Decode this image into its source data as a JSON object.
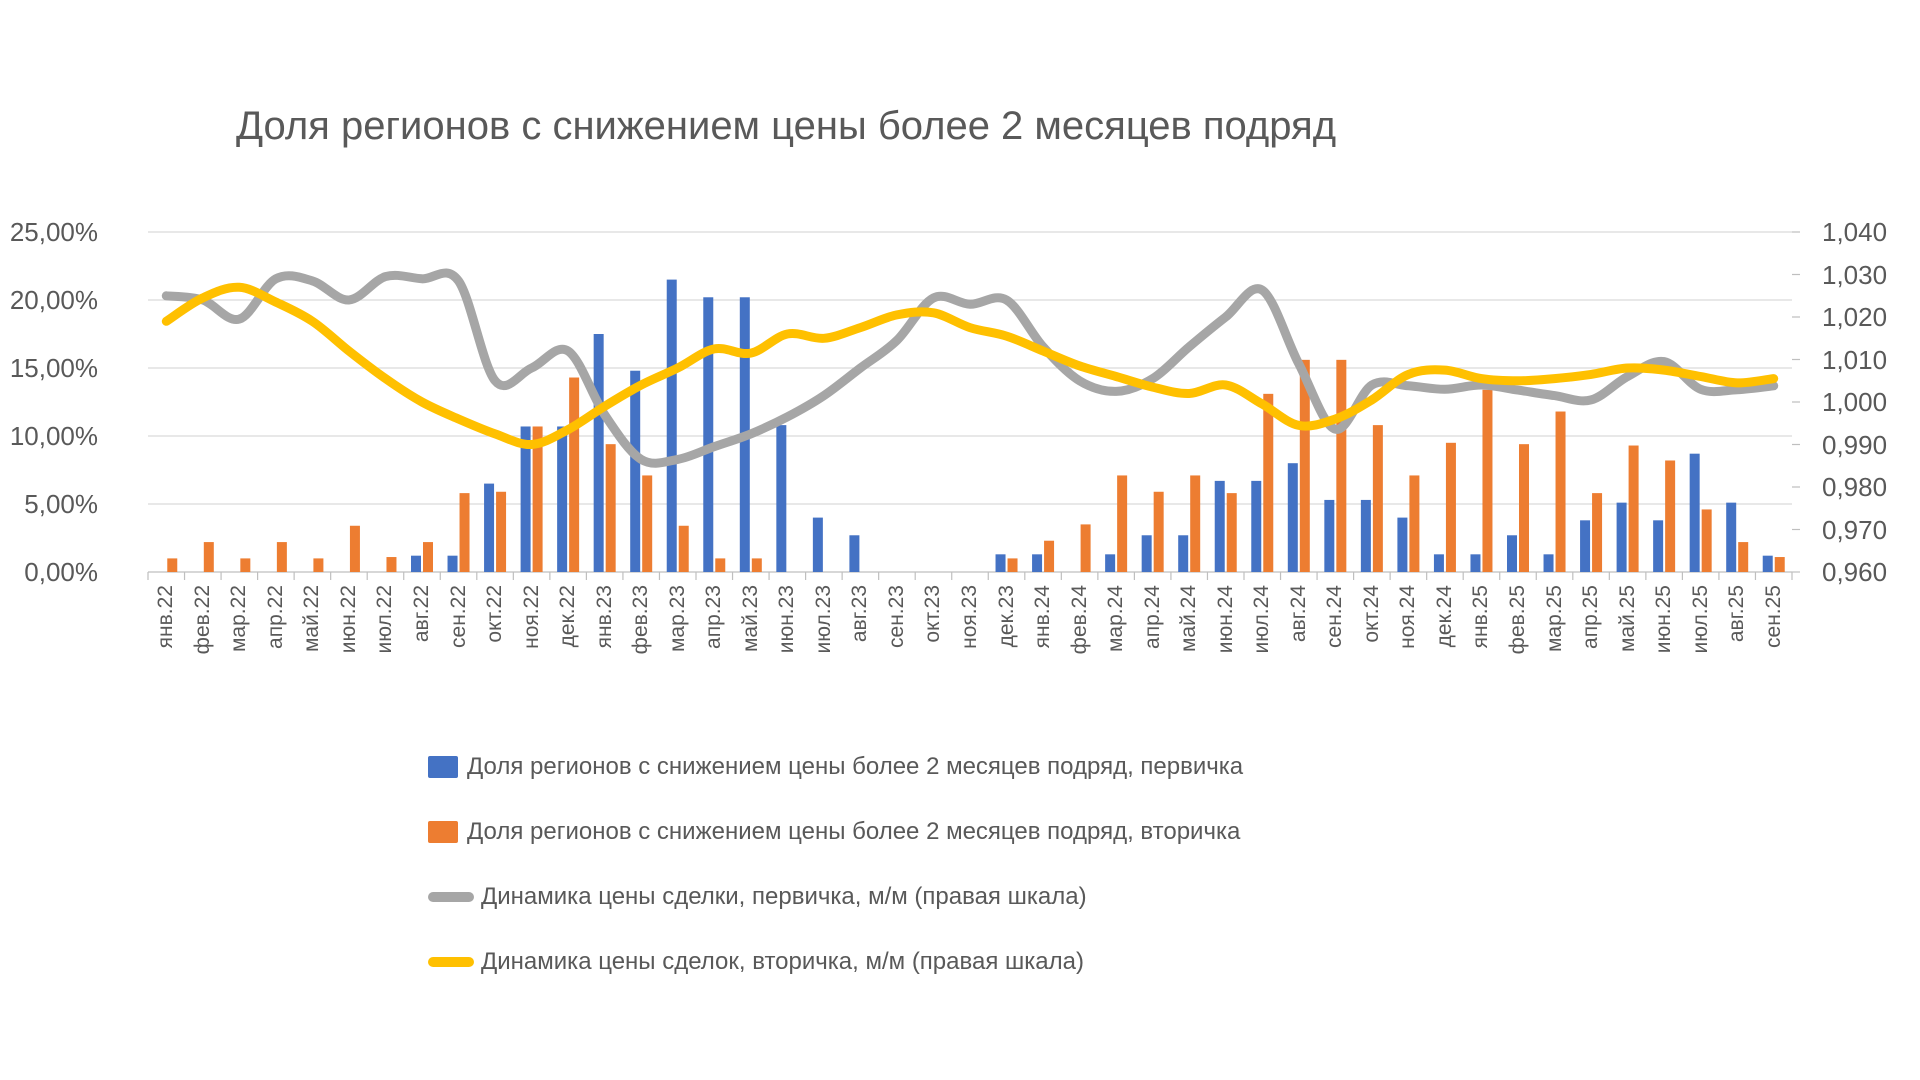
{
  "title": "Доля регионов с снижением цены более 2 месяцев подряд",
  "colors": {
    "primary_bar": "#4472C4",
    "secondary_bar": "#ED7D31",
    "primary_line": "#A6A6A6",
    "secondary_line": "#FFC000",
    "gridline": "#D9D9D9",
    "axis_line": "#BFBFBF",
    "text": "#595959"
  },
  "left_axis": {
    "tick_labels": [
      "25,00%",
      "20,00%",
      "15,00%",
      "10,00%",
      "5,00%",
      "0,00%"
    ],
    "min": 0,
    "max": 25
  },
  "right_axis": {
    "tick_labels": [
      "1,040",
      "1,030",
      "1,020",
      "1,010",
      "1,000",
      "0,990",
      "0,980",
      "0,970",
      "0,960"
    ],
    "min": 0.96,
    "max": 1.04
  },
  "legend": [
    {
      "label": "Доля регионов с снижением цены более 2 месяцев подряд, первичка",
      "swatch": "bar",
      "color": "#4472C4"
    },
    {
      "label": "Доля регионов с снижением цены более 2 месяцев подряд, вторичка",
      "swatch": "bar",
      "color": "#ED7D31"
    },
    {
      "label": "Динамика цены сделки, первичка, м/м (правая шкала)",
      "swatch": "line",
      "color": "#A6A6A6"
    },
    {
      "label": "Динамика цены сделок, вторичка, м/м (правая шкала)",
      "swatch": "line",
      "color": "#FFC000"
    }
  ],
  "chart_data": {
    "type": "bar",
    "subtype": "combo-bar-line-two-axes",
    "title": "Доля регионов с снижением цены более 2 месяцев подряд",
    "xlabel": "",
    "ylabel_left": "",
    "ylim_left": [
      0,
      25
    ],
    "ylim_right": [
      0.96,
      1.04
    ],
    "grid": "horizontal",
    "legend_position": "bottom",
    "categories": [
      "янв.22",
      "фев.22",
      "мар.22",
      "апр.22",
      "май.22",
      "июн.22",
      "июл.22",
      "авг.22",
      "сен.22",
      "окт.22",
      "ноя.22",
      "дек.22",
      "янв.23",
      "фев.23",
      "мар.23",
      "апр.23",
      "май.23",
      "июн.23",
      "июл.23",
      "авг.23",
      "сен.23",
      "окт.23",
      "ноя.23",
      "дек.23",
      "янв.24",
      "фев.24",
      "мар.24",
      "апр.24",
      "май.24",
      "июн.24",
      "июл.24",
      "авг.24",
      "сен.24",
      "окт.24",
      "ноя.24",
      "дек.24",
      "янв.25",
      "фев.25",
      "мар.25",
      "апр.25",
      "май.25",
      "июн.25",
      "июл.25",
      "авг.25",
      "сен.25"
    ],
    "series": [
      {
        "name": "Доля регионов с снижением цены более 2 месяцев подряд, первичка",
        "type": "bar",
        "axis": "left",
        "unit": "%",
        "color": "#4472C4",
        "values": [
          0,
          0,
          0,
          0,
          0,
          0,
          0,
          1.2,
          1.2,
          6.5,
          10.7,
          10.7,
          17.5,
          14.8,
          21.5,
          20.2,
          20.2,
          10.8,
          4.0,
          2.7,
          0,
          0,
          0,
          1.3,
          1.3,
          0,
          1.3,
          2.7,
          2.7,
          6.7,
          6.7,
          8.0,
          5.3,
          5.3,
          4.0,
          1.3,
          1.3,
          2.7,
          1.3,
          3.8,
          5.1,
          3.8,
          8.7,
          5.1,
          1.2
        ]
      },
      {
        "name": "Доля регионов с снижением цены более 2 месяцев подряд, вторичка",
        "type": "bar",
        "axis": "left",
        "unit": "%",
        "color": "#ED7D31",
        "values": [
          1.0,
          2.2,
          1.0,
          2.2,
          1.0,
          3.4,
          1.1,
          2.2,
          5.8,
          5.9,
          10.7,
          14.3,
          9.4,
          7.1,
          3.4,
          1.0,
          1.0,
          0,
          0,
          0,
          0,
          0,
          0,
          1.0,
          2.3,
          3.5,
          7.1,
          5.9,
          7.1,
          5.8,
          13.1,
          15.6,
          15.6,
          10.8,
          7.1,
          9.5,
          13.4,
          9.4,
          11.8,
          5.8,
          9.3,
          8.2,
          4.6,
          2.2,
          1.1
        ]
      },
      {
        "name": "Динамика цены сделки, первичка, м/м (правая шкала)",
        "type": "line",
        "axis": "right",
        "color": "#A6A6A6",
        "values": [
          1.025,
          1.024,
          1.0195,
          1.029,
          1.0285,
          1.024,
          1.0295,
          1.029,
          1.0285,
          1.005,
          1.008,
          1.012,
          0.997,
          0.9865,
          0.9865,
          0.9895,
          0.9925,
          0.9965,
          1.0015,
          1.008,
          1.0145,
          1.0245,
          1.023,
          1.024,
          1.013,
          1.005,
          1.0025,
          1.0055,
          1.013,
          1.02,
          1.0263,
          1.009,
          0.9936,
          1.004,
          1.0038,
          1.003,
          1.004,
          1.0028,
          1.0015,
          1.0005,
          1.006,
          1.0095,
          1.003,
          1.0029,
          1.0038
        ]
      },
      {
        "name": "Динамика цены сделок, вторичка, м/м (правая шкала)",
        "type": "line",
        "axis": "right",
        "color": "#FFC000",
        "values": [
          1.019,
          1.0245,
          1.027,
          1.0235,
          1.019,
          1.012,
          1.0055,
          1.0,
          0.996,
          0.9925,
          0.99,
          0.9935,
          0.999,
          1.004,
          1.008,
          1.0125,
          1.0115,
          1.016,
          1.015,
          1.0175,
          1.0205,
          1.021,
          1.0175,
          1.0155,
          1.012,
          1.0085,
          1.006,
          1.0035,
          1.002,
          1.004,
          0.9995,
          0.9945,
          0.996,
          1.0005,
          1.0065,
          1.0075,
          1.0055,
          1.005,
          1.0055,
          1.0065,
          1.008,
          1.0075,
          1.006,
          1.0045,
          1.0055
        ]
      }
    ]
  }
}
